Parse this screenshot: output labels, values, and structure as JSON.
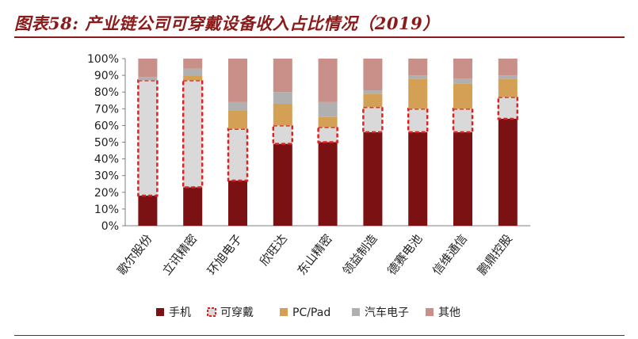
{
  "title": "图表58: 产业链公司可穿戴设备收入占比情况（2019）",
  "chart_data": {
    "type": "bar",
    "stacked": true,
    "categories": [
      "歌尔股份",
      "立讯精密",
      "环旭电子",
      "欣旺达",
      "东山精密",
      "领益制造",
      "德赛电池",
      "信维通信",
      "鹏鼎控股"
    ],
    "series": [
      {
        "name": "手机",
        "color": "#7B1113",
        "values": [
          18,
          23,
          27,
          49,
          50,
          56,
          56,
          56,
          64
        ]
      },
      {
        "name": "可穿戴",
        "color": "#D9D9D9",
        "border": "#E02020",
        "values": [
          69,
          64,
          31,
          11,
          9,
          15,
          14,
          14,
          13
        ]
      },
      {
        "name": "PC/Pad",
        "color": "#D4A056",
        "values": [
          0,
          3,
          11,
          13,
          6,
          8,
          18,
          15,
          11
        ]
      },
      {
        "name": "汽车电子",
        "color": "#B0B0B0",
        "values": [
          2,
          4,
          5,
          7,
          9,
          2,
          2,
          3,
          2
        ]
      },
      {
        "name": "其他",
        "color": "#C89088",
        "values": [
          11,
          6,
          26,
          20,
          26,
          19,
          10,
          12,
          10
        ]
      }
    ],
    "yticks": [
      "0%",
      "10%",
      "20%",
      "30%",
      "40%",
      "50%",
      "60%",
      "70%",
      "80%",
      "90%",
      "100%"
    ],
    "ylim": [
      0,
      100
    ],
    "grid": false,
    "legend_position": "bottom"
  }
}
